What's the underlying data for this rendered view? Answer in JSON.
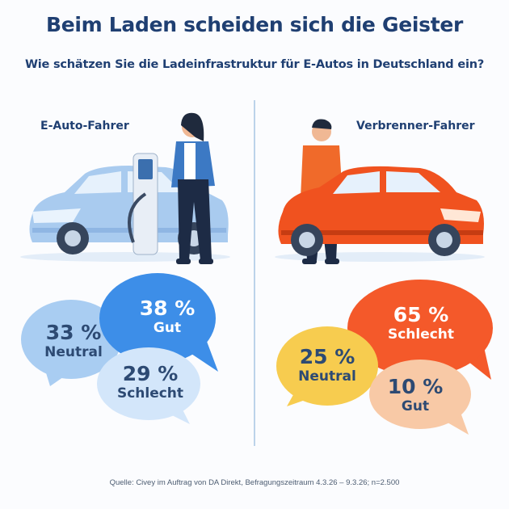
{
  "title": "Beim Laden scheiden sich die Geister",
  "subtitle": "Wie schätzen Sie die Ladeinfrastruktur für E-Autos in Deutschland ein?",
  "groups": [
    {
      "label": "E-Auto-Fahrer",
      "responses": [
        {
          "percent": "33 %",
          "label": "Neutral",
          "color": "#a9cdf2"
        },
        {
          "percent": "38 %",
          "label": "Gut",
          "color": "#3d8ee8"
        },
        {
          "percent": "29 %",
          "label": "Schlecht",
          "color": "#d3e6fa"
        }
      ]
    },
    {
      "label": "Verbrenner-Fahrer",
      "responses": [
        {
          "percent": "65 %",
          "label": "Schlecht",
          "color": "#f4592a"
        },
        {
          "percent": "25 %",
          "label": "Neutral",
          "color": "#f7cc4f"
        },
        {
          "percent": "10 %",
          "label": "Gut",
          "color": "#f8c9a6"
        }
      ]
    }
  ],
  "source": "Quelle: Civey im Auftrag von DA Direkt, Befragungszeitraum 4.3.26 – 9.3.26; n=2.500"
}
